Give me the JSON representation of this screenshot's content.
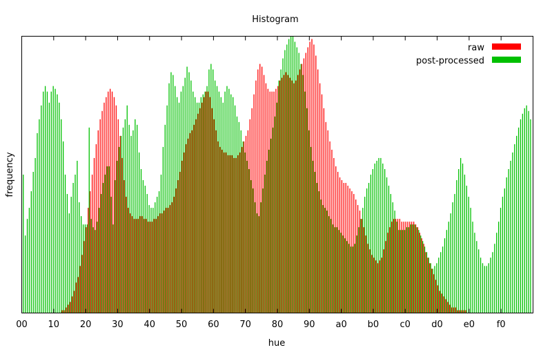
{
  "chart_data": {
    "type": "bar",
    "title": "Histogram",
    "xlabel": "hue",
    "ylabel": "frequency",
    "xlim": [
      0,
      256
    ],
    "ylim": [
      0,
      100
    ],
    "grid": false,
    "legend_position": "top-right",
    "x_tick_values": [
      0,
      16,
      32,
      48,
      64,
      80,
      96,
      112,
      128,
      144,
      160,
      176,
      192,
      208,
      224,
      240
    ],
    "x_tick_labels": [
      "00",
      "10",
      "20",
      "30",
      "40",
      "50",
      "60",
      "70",
      "80",
      "90",
      "a0",
      "b0",
      "c0",
      "d0",
      "e0",
      "f0"
    ],
    "series": [
      {
        "name": "raw",
        "color": "#ff0000",
        "values": [
          0,
          0,
          0,
          0,
          0,
          0,
          0,
          0,
          0,
          0,
          0,
          0,
          0,
          0,
          0,
          0,
          0,
          0,
          0,
          0,
          1,
          1,
          2,
          3,
          4,
          6,
          8,
          11,
          13,
          17,
          21,
          26,
          31,
          38,
          44,
          50,
          56,
          61,
          66,
          70,
          73,
          76,
          78,
          80,
          81,
          80,
          78,
          75,
          70,
          64,
          56,
          48,
          42,
          38,
          36,
          35,
          34,
          34,
          34,
          35,
          35,
          34,
          34,
          33,
          33,
          33,
          34,
          34,
          35,
          36,
          36,
          37,
          38,
          38,
          39,
          40,
          42,
          45,
          48,
          51,
          55,
          58,
          61,
          63,
          65,
          66,
          68,
          70,
          72,
          74,
          76,
          78,
          80,
          80,
          78,
          74,
          70,
          66,
          62,
          60,
          59,
          58,
          58,
          57,
          57,
          57,
          56,
          56,
          57,
          58,
          60,
          62,
          64,
          66,
          70,
          74,
          79,
          84,
          88,
          90,
          89,
          86,
          83,
          81,
          80,
          80,
          80,
          81,
          82,
          84,
          85,
          86,
          87,
          86,
          85,
          84,
          83,
          84,
          86,
          88,
          90,
          92,
          94,
          96,
          98,
          99,
          97,
          93,
          88,
          83,
          79,
          74,
          69,
          66,
          62,
          59,
          56,
          53,
          51,
          49,
          48,
          47,
          47,
          46,
          45,
          44,
          43,
          41,
          39,
          37,
          34,
          31,
          28,
          25,
          23,
          21,
          20,
          19,
          18,
          19,
          20,
          23,
          26,
          29,
          31,
          33,
          34,
          34,
          34,
          34,
          33,
          33,
          33,
          33,
          33,
          33,
          33,
          32,
          31,
          29,
          27,
          25,
          22,
          20,
          18,
          16,
          14,
          12,
          10,
          8,
          7,
          6,
          5,
          4,
          3,
          2,
          2,
          2,
          1,
          1,
          1,
          1,
          1,
          0,
          0,
          0,
          0,
          0,
          0,
          0,
          0,
          0,
          0,
          0,
          0,
          0,
          0,
          0,
          0,
          0,
          0,
          0,
          0,
          0,
          0,
          0,
          0,
          0,
          0,
          0,
          0,
          0,
          0,
          0,
          0,
          0,
          0,
          0,
          0,
          0
        ]
      },
      {
        "name": "post-processed",
        "color": "#00c000",
        "values": [
          50,
          28,
          34,
          38,
          44,
          51,
          56,
          65,
          70,
          75,
          80,
          82,
          80,
          76,
          80,
          82,
          81,
          79,
          76,
          70,
          62,
          50,
          43,
          36,
          42,
          47,
          50,
          55,
          40,
          35,
          32,
          32,
          32,
          67,
          34,
          31,
          30,
          33,
          38,
          43,
          47,
          50,
          53,
          53,
          42,
          32,
          48,
          55,
          60,
          64,
          67,
          70,
          75,
          68,
          64,
          66,
          70,
          68,
          58,
          52,
          48,
          46,
          43,
          39,
          38,
          38,
          40,
          42,
          44,
          50,
          60,
          68,
          75,
          83,
          87,
          86,
          82,
          78,
          76,
          80,
          82,
          85,
          89,
          87,
          84,
          80,
          78,
          76,
          76,
          78,
          79,
          80,
          82,
          88,
          90,
          88,
          84,
          82,
          80,
          78,
          76,
          80,
          82,
          81,
          79,
          78,
          75,
          71,
          69,
          66,
          62,
          58,
          55,
          52,
          48,
          45,
          40,
          36,
          35,
          40,
          45,
          50,
          55,
          59,
          63,
          67,
          71,
          76,
          84,
          88,
          92,
          95,
          97,
          99,
          101,
          101,
          98,
          96,
          94,
          90,
          86,
          80,
          74,
          66,
          60,
          55,
          51,
          47,
          44,
          41,
          39,
          38,
          37,
          35,
          34,
          32,
          31,
          31,
          30,
          29,
          28,
          27,
          26,
          25,
          24,
          24,
          25,
          28,
          31,
          34,
          38,
          42,
          45,
          47,
          50,
          52,
          54,
          55,
          56,
          56,
          54,
          52,
          49,
          46,
          43,
          40,
          37,
          33,
          30,
          30,
          30,
          30,
          31,
          31,
          32,
          32,
          32,
          31,
          30,
          28,
          26,
          24,
          22,
          20,
          18,
          16,
          17,
          18,
          20,
          22,
          24,
          27,
          30,
          33,
          36,
          40,
          43,
          48,
          52,
          56,
          54,
          50,
          46,
          42,
          38,
          33,
          29,
          26,
          23,
          20,
          18,
          17,
          17,
          18,
          20,
          22,
          25,
          29,
          33,
          38,
          42,
          45,
          49,
          52,
          55,
          58,
          61,
          64,
          67,
          70,
          72,
          74,
          75,
          73,
          70
        ]
      }
    ]
  }
}
